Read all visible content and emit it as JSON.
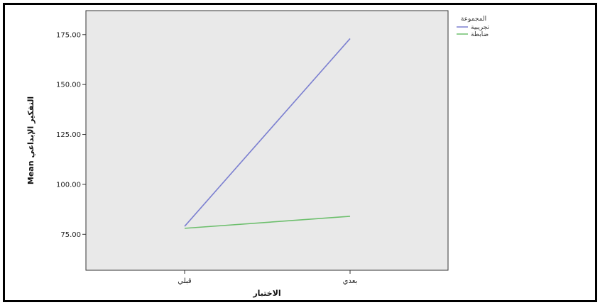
{
  "chart_data": {
    "type": "line",
    "title": "",
    "xlabel": "الاختبار",
    "ylabel": "Mean التفكير الإبداعي",
    "categories": [
      "قبلي",
      "بعدي"
    ],
    "ylim": [
      57,
      187
    ],
    "yticks": [
      "75.00",
      "100.00",
      "125.00",
      "150.00",
      "175.00"
    ],
    "legend": {
      "title": "المجموعة",
      "position": "top-right-outside"
    },
    "series": [
      {
        "name": "تجريبية",
        "values": [
          79,
          173
        ],
        "color": "#7b7fd0"
      },
      {
        "name": "ضابطة",
        "values": [
          78,
          84
        ],
        "color": "#6dbf6d"
      }
    ],
    "plot_background": "#e9e9e9",
    "grid": false
  }
}
